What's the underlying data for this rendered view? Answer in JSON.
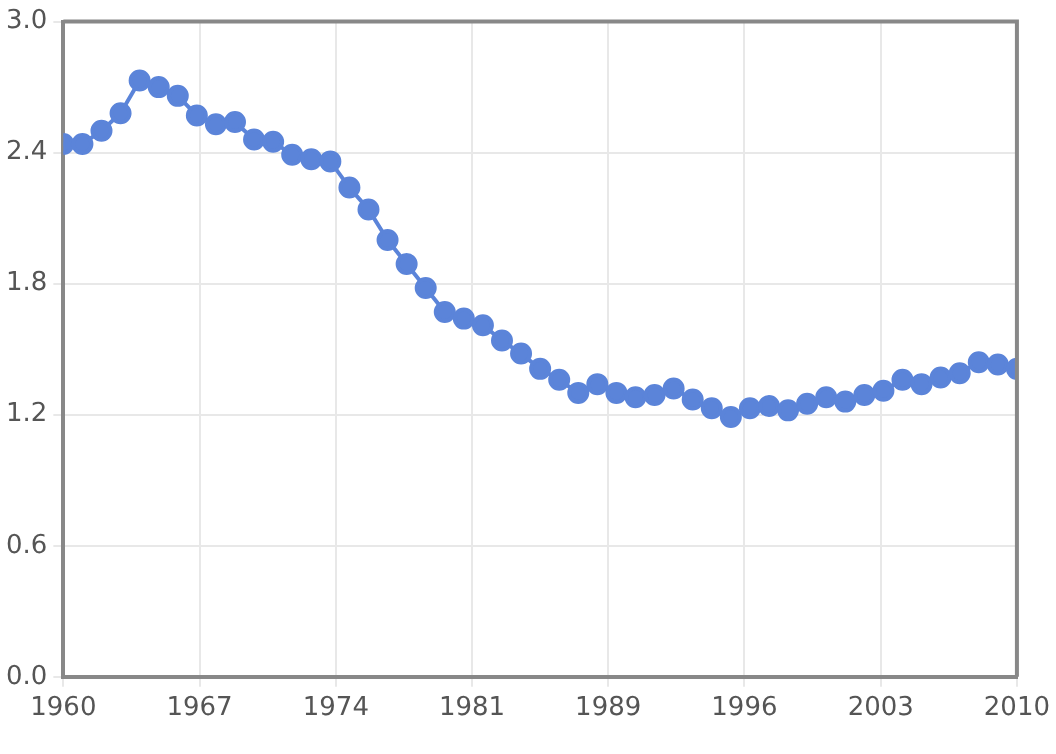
{
  "chart_data": {
    "type": "line",
    "x": [
      1960,
      1961,
      1962,
      1963,
      1964,
      1965,
      1966,
      1967,
      1968,
      1969,
      1970,
      1971,
      1972,
      1973,
      1974,
      1975,
      1976,
      1977,
      1978,
      1979,
      1980,
      1981,
      1982,
      1983,
      1984,
      1985,
      1986,
      1987,
      1988,
      1989,
      1990,
      1991,
      1992,
      1993,
      1994,
      1995,
      1996,
      1997,
      1998,
      1999,
      2000,
      2001,
      2002,
      2003,
      2004,
      2005,
      2006,
      2007,
      2008,
      2009,
      2010
    ],
    "series": [
      {
        "color": "#5b84d9",
        "values": [
          2.44,
          2.44,
          2.5,
          2.58,
          2.73,
          2.7,
          2.66,
          2.57,
          2.53,
          2.54,
          2.46,
          2.45,
          2.39,
          2.37,
          2.36,
          2.24,
          2.14,
          2.0,
          1.89,
          1.78,
          1.67,
          1.64,
          1.61,
          1.54,
          1.48,
          1.41,
          1.36,
          1.3,
          1.34,
          1.3,
          1.28,
          1.29,
          1.32,
          1.27,
          1.23,
          1.19,
          1.23,
          1.24,
          1.22,
          1.25,
          1.28,
          1.26,
          1.29,
          1.31,
          1.36,
          1.34,
          1.37,
          1.39,
          1.44,
          1.43,
          1.41
        ]
      }
    ],
    "xlim": [
      1960,
      2010
    ],
    "xticks": [
      1960,
      {
        "value": 1967.14,
        "label": "1967"
      },
      {
        "value": 1974.29,
        "label": "1974"
      },
      {
        "value": 1981.43,
        "label": "1981"
      },
      {
        "value": 1988.57,
        "label": "1989"
      },
      {
        "value": 1995.71,
        "label": "1996"
      },
      {
        "value": 2002.86,
        "label": "2003"
      },
      2010
    ],
    "ylim": [
      0,
      3
    ],
    "yticks": [
      {
        "value": 0,
        "label": "0.0"
      },
      {
        "value": 0.6,
        "label": "0.6"
      },
      {
        "value": 1.2,
        "label": "1.2"
      },
      {
        "value": 1.8,
        "label": "1.8"
      },
      {
        "value": 2.4,
        "label": "2.4"
      },
      {
        "value": 3,
        "label": "3.0"
      }
    ],
    "grid": true,
    "marker": "circle",
    "line_style": "solid"
  }
}
